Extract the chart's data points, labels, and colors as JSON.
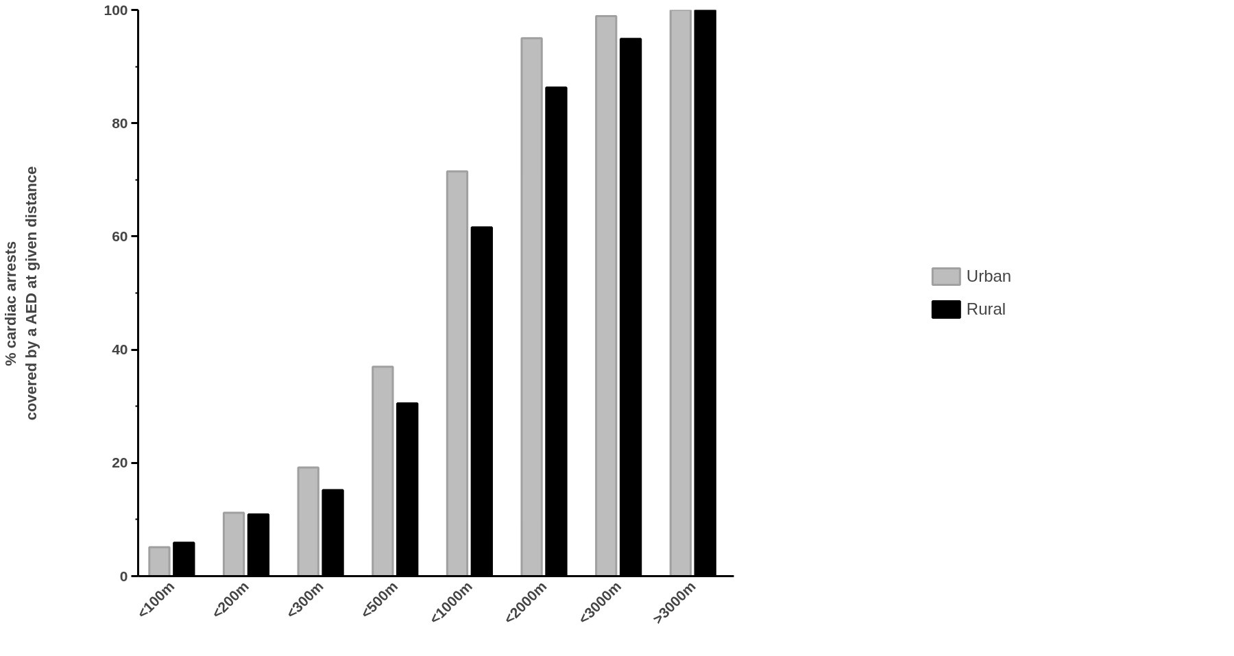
{
  "chart_data": {
    "type": "bar",
    "ylabel": "%      cardiac arrests\ncovered by a AED at given distance",
    "categories": [
      "<100m",
      "<200m",
      "<300m",
      "<500m",
      "<1000m",
      "<2000m",
      "<3000m",
      ">3000m"
    ],
    "series": [
      {
        "name": "Urban",
        "color": "#bdbdbd",
        "values": [
          5.1,
          11.2,
          19.2,
          37.0,
          71.5,
          95.0,
          98.9,
          100
        ]
      },
      {
        "name": "Rural",
        "color": "#000000",
        "values": [
          5.9,
          10.9,
          15.2,
          30.5,
          61.6,
          86.3,
          94.9,
          100
        ]
      }
    ],
    "ylim": [
      0,
      100
    ],
    "yticks": [
      0,
      20,
      40,
      60,
      80,
      100
    ],
    "grid": false,
    "legend": "right"
  }
}
